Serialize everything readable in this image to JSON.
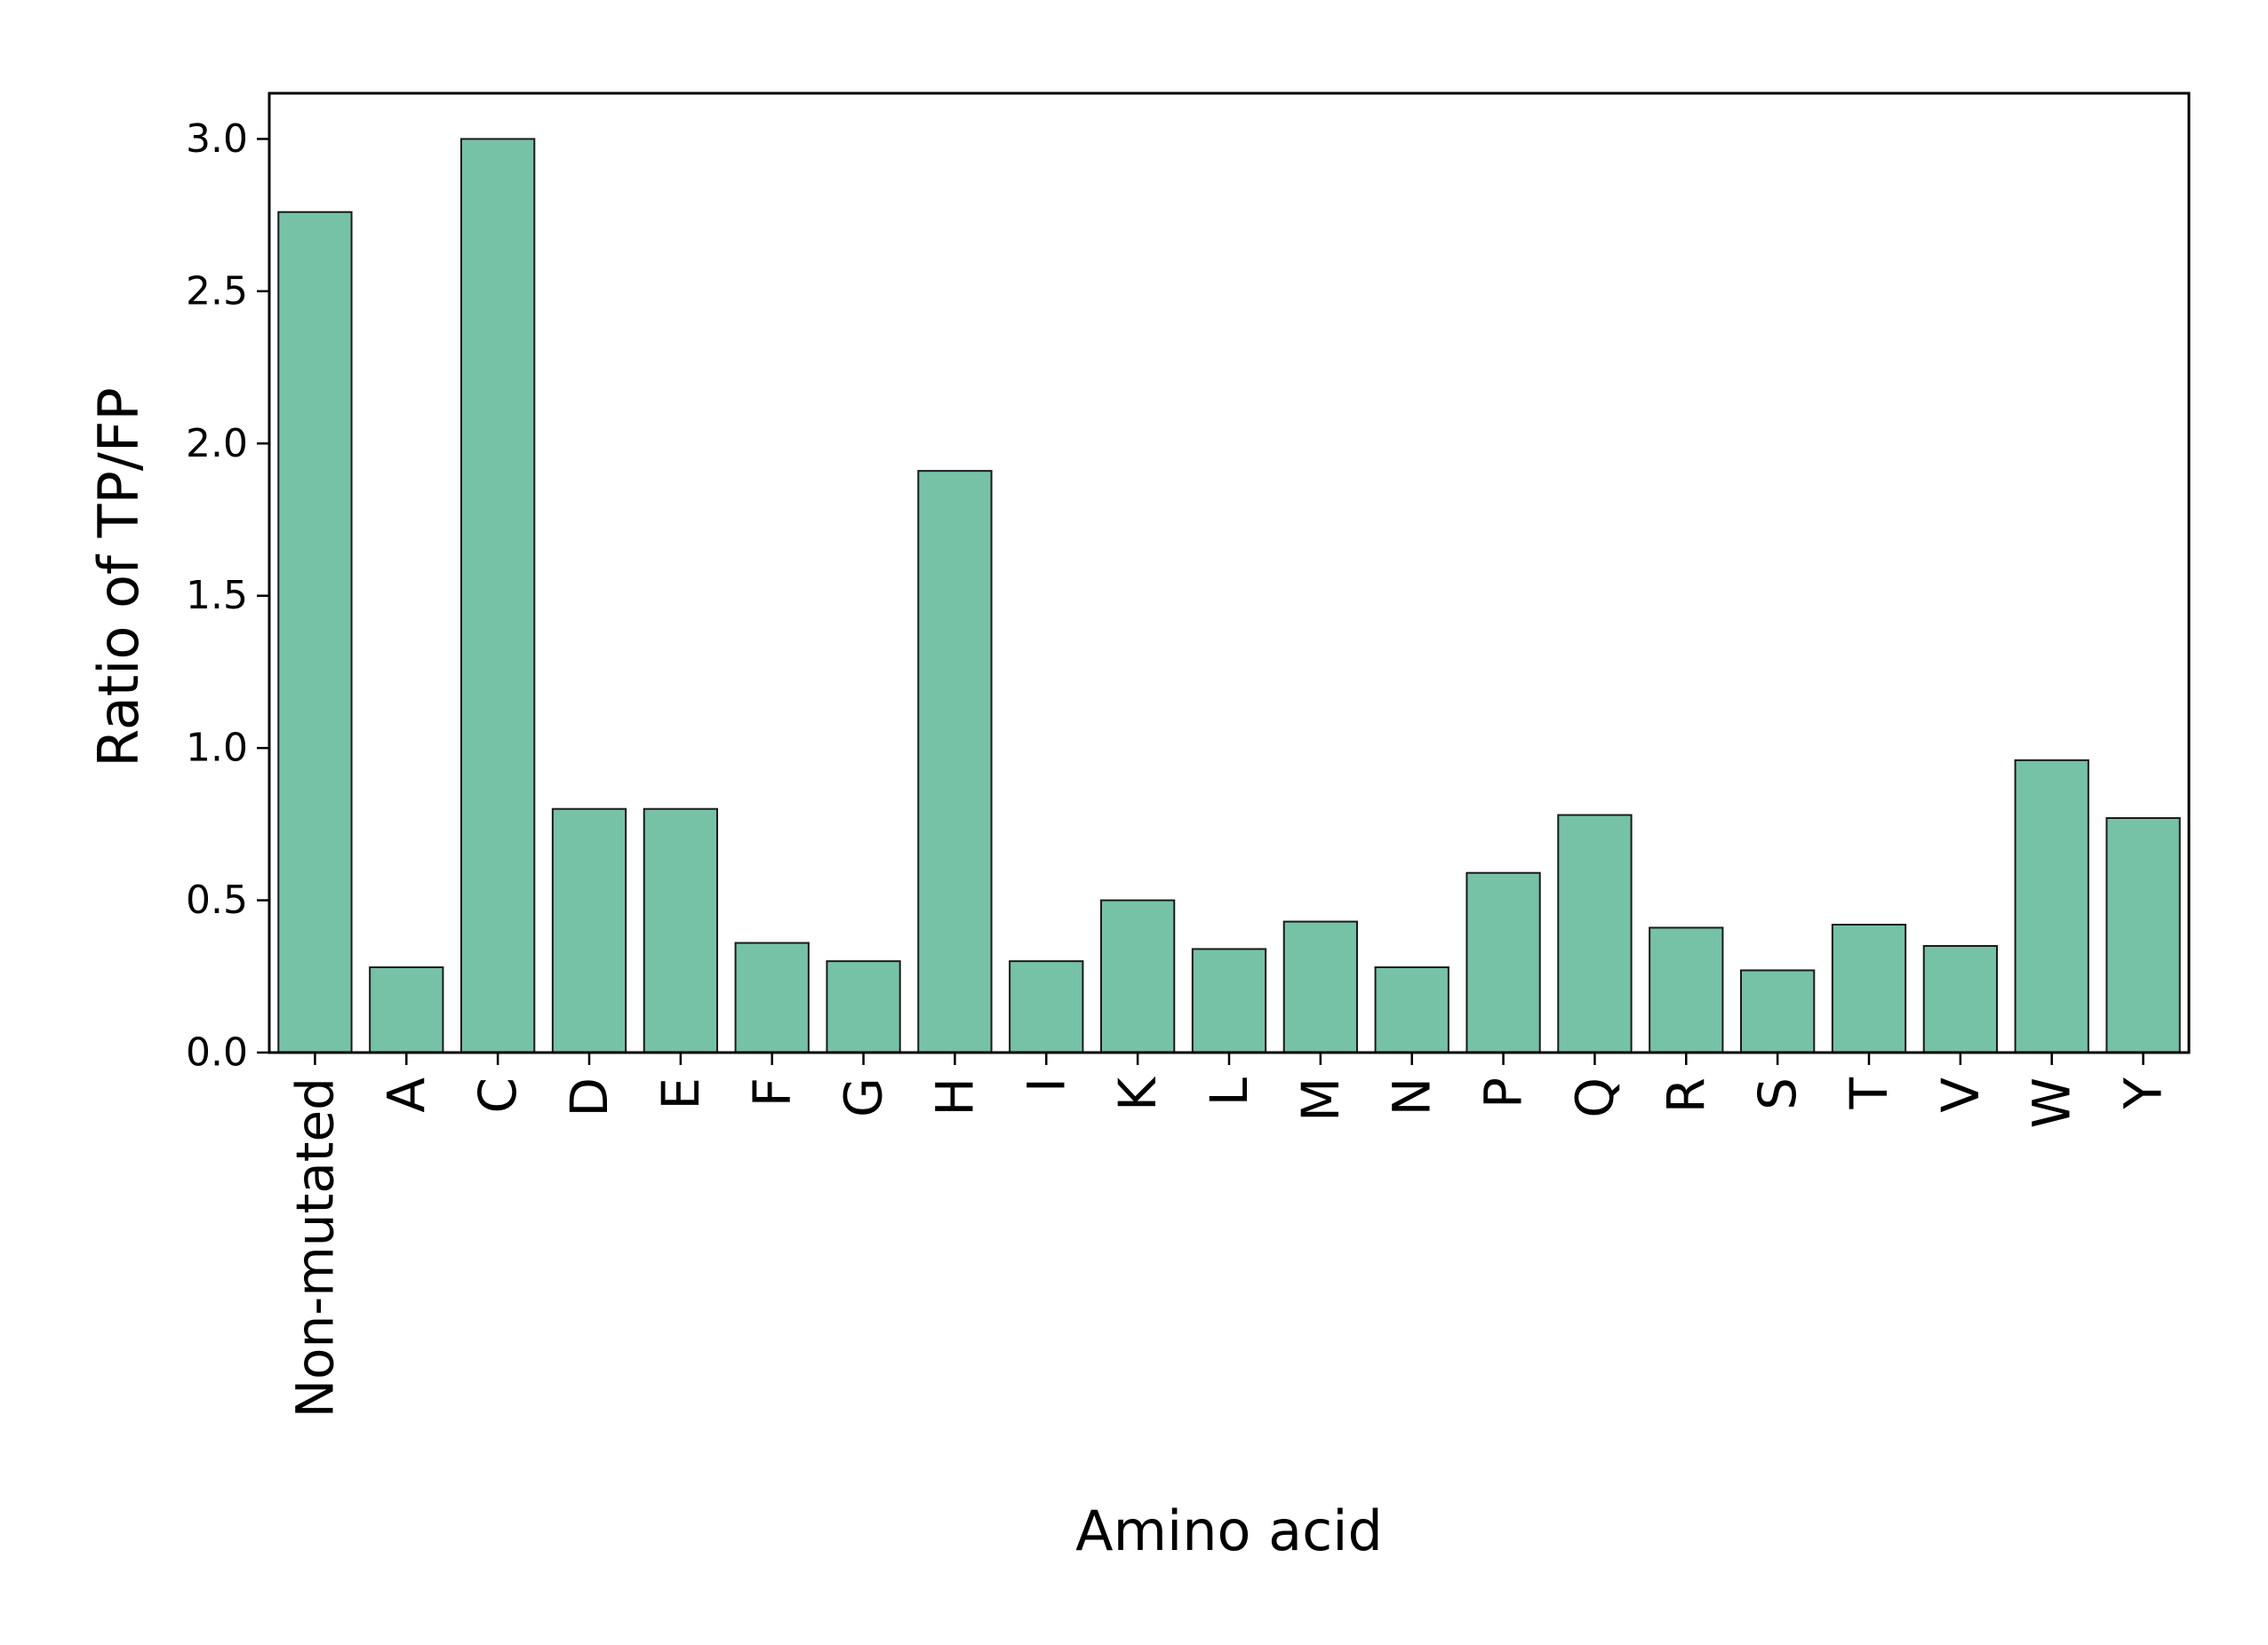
{
  "chart_data": {
    "type": "bar",
    "title": "",
    "xlabel": "Amino acid",
    "ylabel": "Ratio of TP/FP",
    "categories": [
      "Non-mutated",
      "A",
      "C",
      "D",
      "E",
      "F",
      "G",
      "H",
      "I",
      "K",
      "L",
      "M",
      "N",
      "P",
      "Q",
      "R",
      "S",
      "T",
      "V",
      "W",
      "Y"
    ],
    "values": [
      2.76,
      0.28,
      3.0,
      0.8,
      0.8,
      0.36,
      0.3,
      1.91,
      0.3,
      0.5,
      0.34,
      0.43,
      0.28,
      0.59,
      0.78,
      0.41,
      0.27,
      0.42,
      0.35,
      0.96,
      0.77
    ],
    "ylim": [
      0,
      3.15
    ],
    "yticks": [
      "0.0",
      "0.5",
      "1.0",
      "1.5",
      "2.0",
      "2.5",
      "3.0"
    ],
    "grid": false,
    "bar_color": "#76c2a6",
    "edge_color": "#1a1a1a"
  }
}
